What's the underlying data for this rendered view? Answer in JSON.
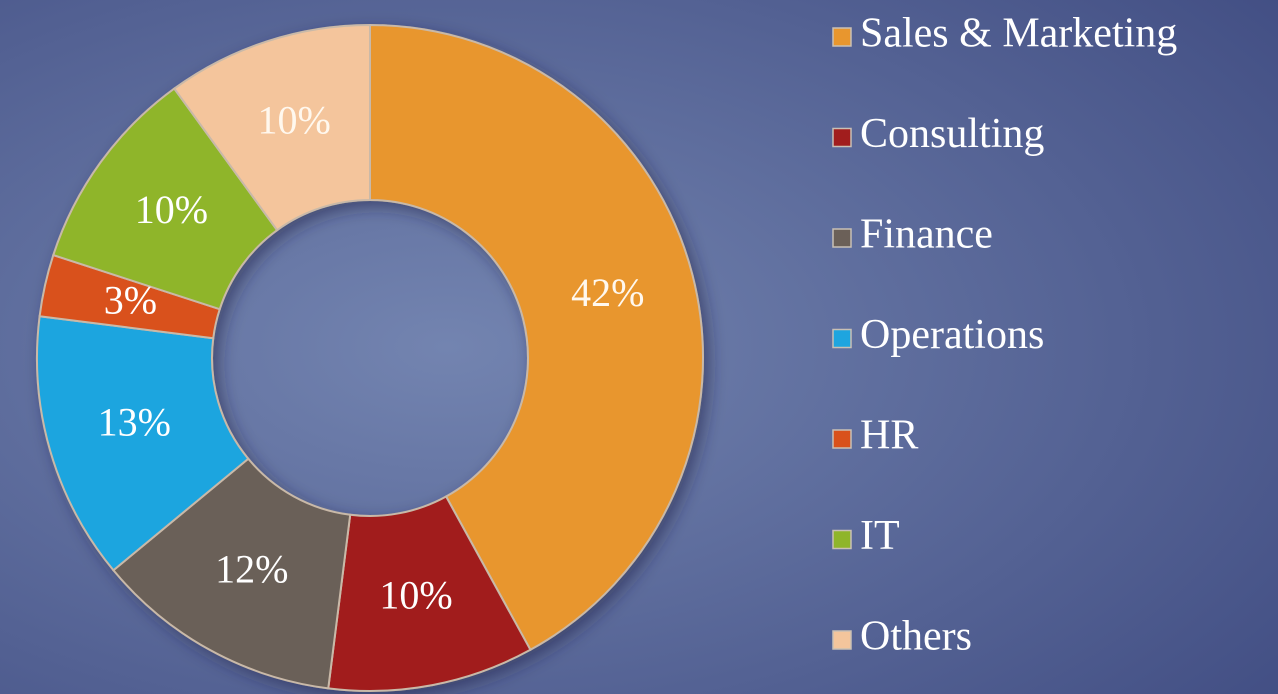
{
  "chart_data": {
    "type": "donut",
    "categories": [
      "Sales & Marketing",
      "Consulting",
      "Finance",
      "Operations",
      "HR",
      "IT",
      "Others"
    ],
    "values": [
      42,
      10,
      12,
      13,
      3,
      10,
      10
    ],
    "value_labels": [
      "42%",
      "10%",
      "12%",
      "13%",
      "3%",
      "10%",
      "10%"
    ],
    "colors": [
      "#e8962e",
      "#a11d1d",
      "#6b6058",
      "#1ea5df",
      "#d9511b",
      "#8fb52a",
      "#f4c59c"
    ],
    "legend": "right"
  }
}
